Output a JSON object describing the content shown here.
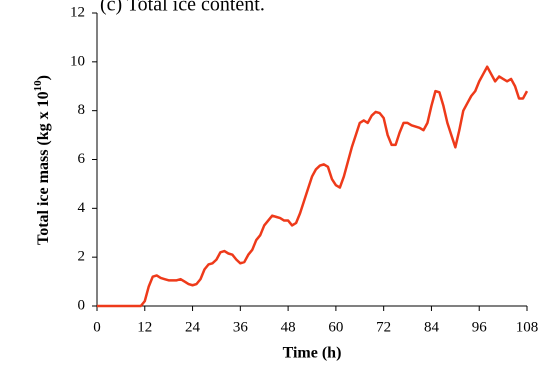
{
  "chart_data": {
    "type": "line",
    "title": "(c) Total ice content.",
    "xlabel": "Time (h)",
    "ylabel": {
      "text": "Total ice mass  (kg x 10",
      "superscript": "10",
      "suffix": ")"
    },
    "x": [
      0,
      1,
      2,
      3,
      4,
      5,
      6,
      7,
      8,
      9,
      10,
      11,
      12,
      13,
      14,
      15,
      16,
      17,
      18,
      19,
      20,
      21,
      22,
      23,
      24,
      25,
      26,
      27,
      28,
      29,
      30,
      31,
      32,
      33,
      34,
      35,
      36,
      37,
      38,
      39,
      40,
      41,
      42,
      43,
      44,
      45,
      46,
      47,
      48,
      49,
      50,
      51,
      52,
      53,
      54,
      55,
      56,
      57,
      58,
      59,
      60,
      61,
      62,
      63,
      64,
      65,
      66,
      67,
      68,
      69,
      70,
      71,
      72,
      73,
      74,
      75,
      76,
      77,
      78,
      79,
      80,
      81,
      82,
      83,
      84,
      85,
      86,
      87,
      88,
      89,
      90,
      91,
      92,
      93,
      94,
      95,
      96,
      97,
      98,
      99,
      100,
      101,
      102,
      103,
      104,
      105,
      106,
      107,
      108
    ],
    "series": [
      {
        "name": "Total ice mass",
        "color": "#ee3a1a",
        "values": [
          0,
          0,
          0,
          0,
          0,
          0,
          0,
          0,
          0,
          0,
          0,
          0,
          0.2,
          0.8,
          1.2,
          1.25,
          1.15,
          1.1,
          1.05,
          1.05,
          1.05,
          1.1,
          1.0,
          0.9,
          0.85,
          0.9,
          1.1,
          1.5,
          1.7,
          1.75,
          1.9,
          2.2,
          2.25,
          2.15,
          2.1,
          1.9,
          1.75,
          1.8,
          2.1,
          2.3,
          2.7,
          2.9,
          3.3,
          3.5,
          3.7,
          3.65,
          3.6,
          3.5,
          3.5,
          3.3,
          3.4,
          3.8,
          4.3,
          4.8,
          5.3,
          5.6,
          5.75,
          5.8,
          5.7,
          5.2,
          4.95,
          4.85,
          5.3,
          5.9,
          6.5,
          7.0,
          7.5,
          7.6,
          7.5,
          7.8,
          7.95,
          7.9,
          7.7,
          7.0,
          6.6,
          6.6,
          7.1,
          7.5,
          7.5,
          7.4,
          7.35,
          7.3,
          7.2,
          7.5,
          8.2,
          8.8,
          8.75,
          8.2,
          7.5,
          7.0,
          6.5,
          7.2,
          8.0,
          8.3,
          8.6,
          8.8,
          9.2,
          9.5,
          9.8,
          9.5,
          9.2,
          9.4,
          9.3,
          9.2,
          9.3,
          9.0,
          8.5,
          8.5,
          8.8
        ]
      }
    ],
    "xlim": [
      0,
      108
    ],
    "xticks": [
      0,
      12,
      24,
      36,
      48,
      60,
      72,
      84,
      96,
      108
    ],
    "ylim": [
      0,
      12
    ],
    "yticks": [
      0,
      2,
      4,
      6,
      8,
      10,
      12
    ],
    "grid": false
  }
}
